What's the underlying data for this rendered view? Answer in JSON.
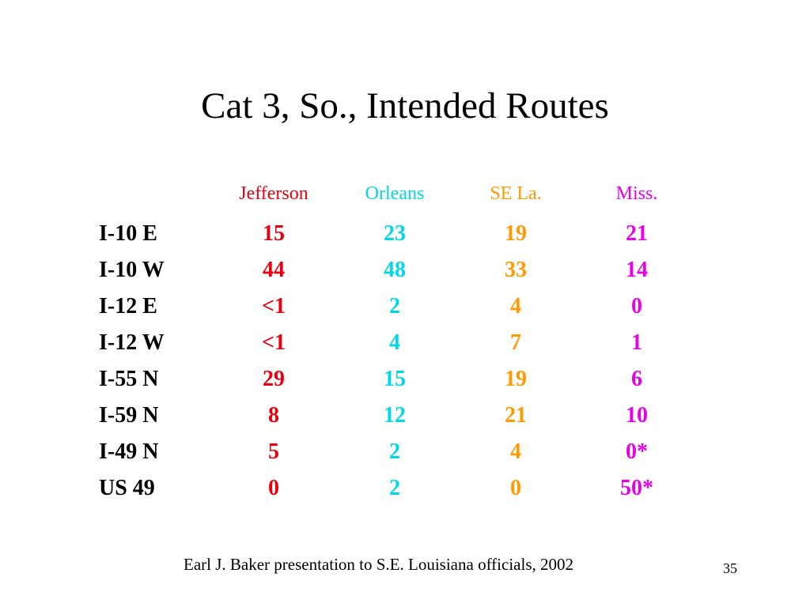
{
  "title": "Cat 3, So., Intended Routes",
  "colors": {
    "jefferson": "#e8000f",
    "orleans": "#00d8e8",
    "se_la": "#ff9a00",
    "miss": "#e800e8",
    "text": "#000000"
  },
  "columns": [
    "Jefferson",
    "Orleans",
    "SE La.",
    "Miss."
  ],
  "rows": [
    {
      "label": "I-10 E",
      "values": [
        "15",
        "23",
        "19",
        "21"
      ]
    },
    {
      "label": "I-10 W",
      "values": [
        "44",
        "48",
        "33",
        "14"
      ]
    },
    {
      "label": "I-12 E",
      "values": [
        "<1",
        "2",
        "4",
        "0"
      ]
    },
    {
      "label": "I-12 W",
      "values": [
        "<1",
        "4",
        "7",
        "1"
      ]
    },
    {
      "label": "I-55 N",
      "values": [
        "29",
        "15",
        "19",
        "6"
      ]
    },
    {
      "label": "I-59 N",
      "values": [
        "8",
        "12",
        "21",
        "10"
      ]
    },
    {
      "label": "I-49 N",
      "values": [
        "5",
        "2",
        "4",
        "0*"
      ]
    },
    {
      "label": "US 49",
      "values": [
        "0",
        "2",
        "0",
        "50*"
      ]
    }
  ],
  "footer": "Earl J. Baker presentation to S.E. Louisiana officials, 2002",
  "page_number": "35"
}
